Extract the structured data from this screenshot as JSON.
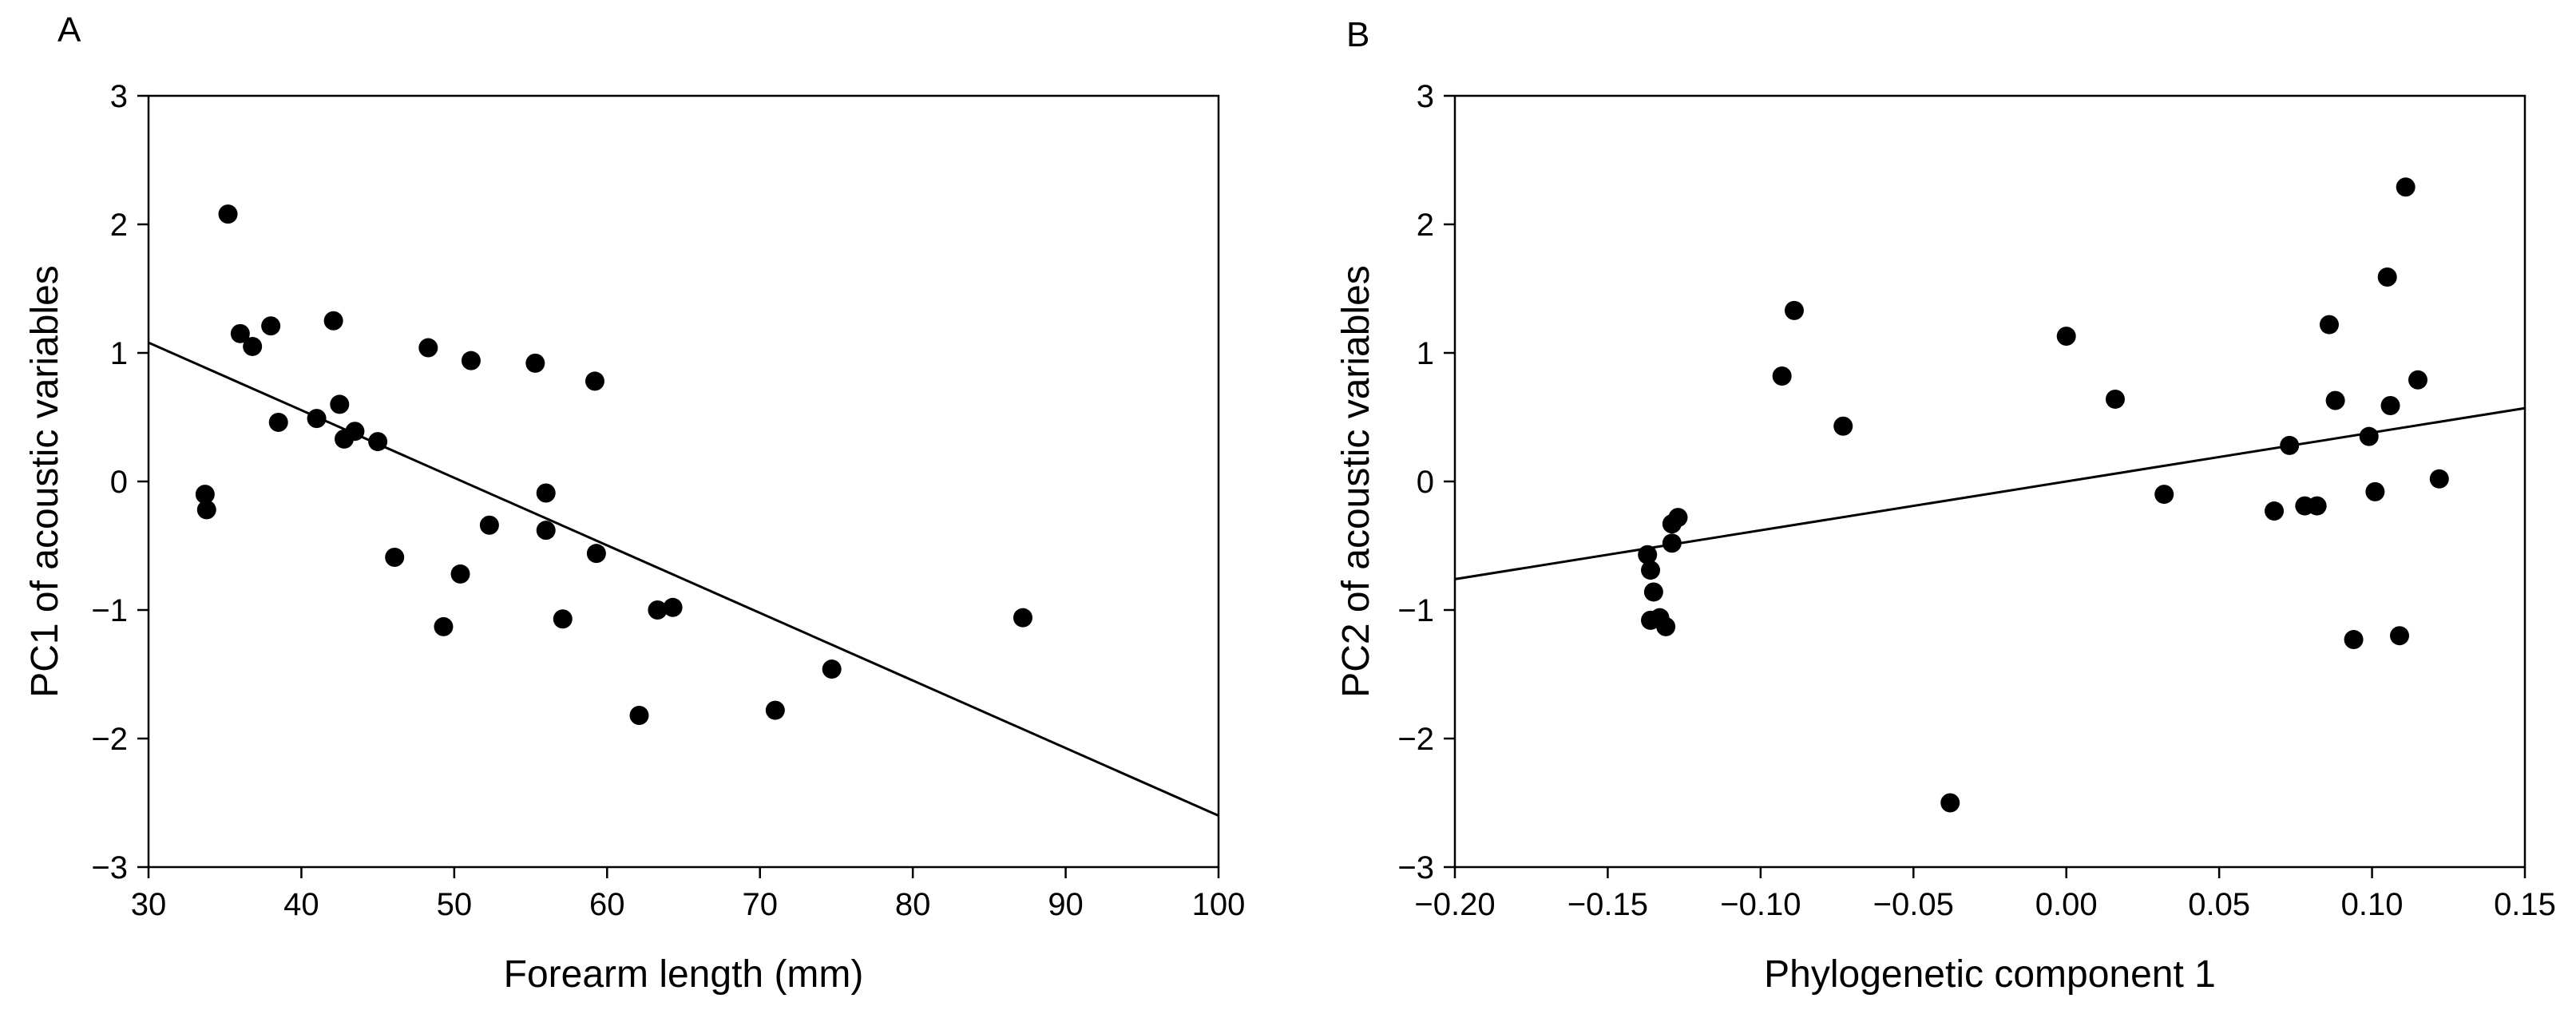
{
  "chart_data": [
    {
      "type": "scatter",
      "panel": "A",
      "title": "",
      "xlabel": "Forearm length (mm)",
      "ylabel": "PC1 of acoustic variables",
      "xlim": [
        30,
        100
      ],
      "ylim": [
        -3,
        3
      ],
      "xticks": [
        30,
        40,
        50,
        60,
        70,
        80,
        90,
        100
      ],
      "xtick_labels": [
        "30",
        "40",
        "50",
        "60",
        "70",
        "80",
        "90",
        "100"
      ],
      "yticks": [
        -3,
        -2,
        -1,
        0,
        1,
        2,
        3
      ],
      "ytick_labels": [
        "−3",
        "−2",
        "−1",
        "0",
        "1",
        "2",
        "3"
      ],
      "grid": false,
      "points": [
        {
          "x": 35.2,
          "y": 2.08
        },
        {
          "x": 36.0,
          "y": 1.15
        },
        {
          "x": 36.8,
          "y": 1.05
        },
        {
          "x": 38.0,
          "y": 1.21
        },
        {
          "x": 38.5,
          "y": 0.46
        },
        {
          "x": 41.0,
          "y": 0.49
        },
        {
          "x": 42.1,
          "y": 1.25
        },
        {
          "x": 42.5,
          "y": 0.6
        },
        {
          "x": 42.8,
          "y": 0.33
        },
        {
          "x": 43.5,
          "y": 0.39
        },
        {
          "x": 45.0,
          "y": 0.31
        },
        {
          "x": 46.1,
          "y": -0.59
        },
        {
          "x": 33.7,
          "y": -0.1
        },
        {
          "x": 33.8,
          "y": -0.22
        },
        {
          "x": 48.3,
          "y": 1.04
        },
        {
          "x": 49.3,
          "y": -1.13
        },
        {
          "x": 50.4,
          "y": -0.72
        },
        {
          "x": 51.1,
          "y": 0.94
        },
        {
          "x": 52.3,
          "y": -0.34
        },
        {
          "x": 55.3,
          "y": 0.92
        },
        {
          "x": 56.0,
          "y": -0.09
        },
        {
          "x": 56.0,
          "y": -0.38
        },
        {
          "x": 57.1,
          "y": -1.07
        },
        {
          "x": 59.2,
          "y": 0.78
        },
        {
          "x": 59.3,
          "y": -0.56
        },
        {
          "x": 62.1,
          "y": -1.82
        },
        {
          "x": 63.3,
          "y": -1.0
        },
        {
          "x": 64.3,
          "y": -0.98
        },
        {
          "x": 71.0,
          "y": -1.78
        },
        {
          "x": 74.7,
          "y": -1.46
        },
        {
          "x": 87.2,
          "y": -1.06
        }
      ],
      "fit_line": {
        "x": [
          30,
          100
        ],
        "y": [
          1.08,
          -2.6
        ]
      }
    },
    {
      "type": "scatter",
      "panel": "B",
      "title": "",
      "xlabel": "Phylogenetic component 1",
      "ylabel": "PC2 of acoustic variables",
      "xlim": [
        -0.2,
        0.15
      ],
      "ylim": [
        -3,
        3
      ],
      "xticks": [
        -0.2,
        -0.15,
        -0.1,
        -0.05,
        0.0,
        0.05,
        0.1,
        0.15
      ],
      "xtick_labels": [
        "−0.20",
        "−0.15",
        "−0.10",
        "−0.05",
        "0.00",
        "0.05",
        "0.10",
        "0.15"
      ],
      "yticks": [
        -3,
        -2,
        -1,
        0,
        1,
        2,
        3
      ],
      "ytick_labels": [
        "−3",
        "−2",
        "−1",
        "0",
        "1",
        "2",
        "3"
      ],
      "grid": false,
      "points": [
        {
          "x": -0.137,
          "y": -0.57
        },
        {
          "x": -0.136,
          "y": -0.69
        },
        {
          "x": -0.136,
          "y": -1.08
        },
        {
          "x": -0.135,
          "y": -0.86
        },
        {
          "x": -0.133,
          "y": -1.06
        },
        {
          "x": -0.131,
          "y": -1.13
        },
        {
          "x": -0.129,
          "y": -0.33
        },
        {
          "x": -0.129,
          "y": -0.48
        },
        {
          "x": -0.127,
          "y": -0.28
        },
        {
          "x": -0.093,
          "y": 0.82
        },
        {
          "x": -0.089,
          "y": 1.33
        },
        {
          "x": -0.073,
          "y": 0.43
        },
        {
          "x": -0.038,
          "y": -2.5
        },
        {
          "x": 0.0,
          "y": 1.13
        },
        {
          "x": 0.016,
          "y": 0.64
        },
        {
          "x": 0.032,
          "y": -0.1
        },
        {
          "x": 0.068,
          "y": -0.23
        },
        {
          "x": 0.073,
          "y": 0.28
        },
        {
          "x": 0.078,
          "y": -0.19
        },
        {
          "x": 0.082,
          "y": -0.19
        },
        {
          "x": 0.086,
          "y": 1.22
        },
        {
          "x": 0.088,
          "y": 0.63
        },
        {
          "x": 0.094,
          "y": -1.23
        },
        {
          "x": 0.099,
          "y": 0.35
        },
        {
          "x": 0.101,
          "y": -0.08
        },
        {
          "x": 0.105,
          "y": 1.59
        },
        {
          "x": 0.106,
          "y": 0.59
        },
        {
          "x": 0.109,
          "y": -1.2
        },
        {
          "x": 0.111,
          "y": 2.29
        },
        {
          "x": 0.115,
          "y": 0.79
        },
        {
          "x": 0.122,
          "y": 0.02
        }
      ],
      "fit_line": {
        "x": [
          -0.2,
          0.15
        ],
        "y": [
          -0.76,
          0.57
        ]
      }
    }
  ]
}
